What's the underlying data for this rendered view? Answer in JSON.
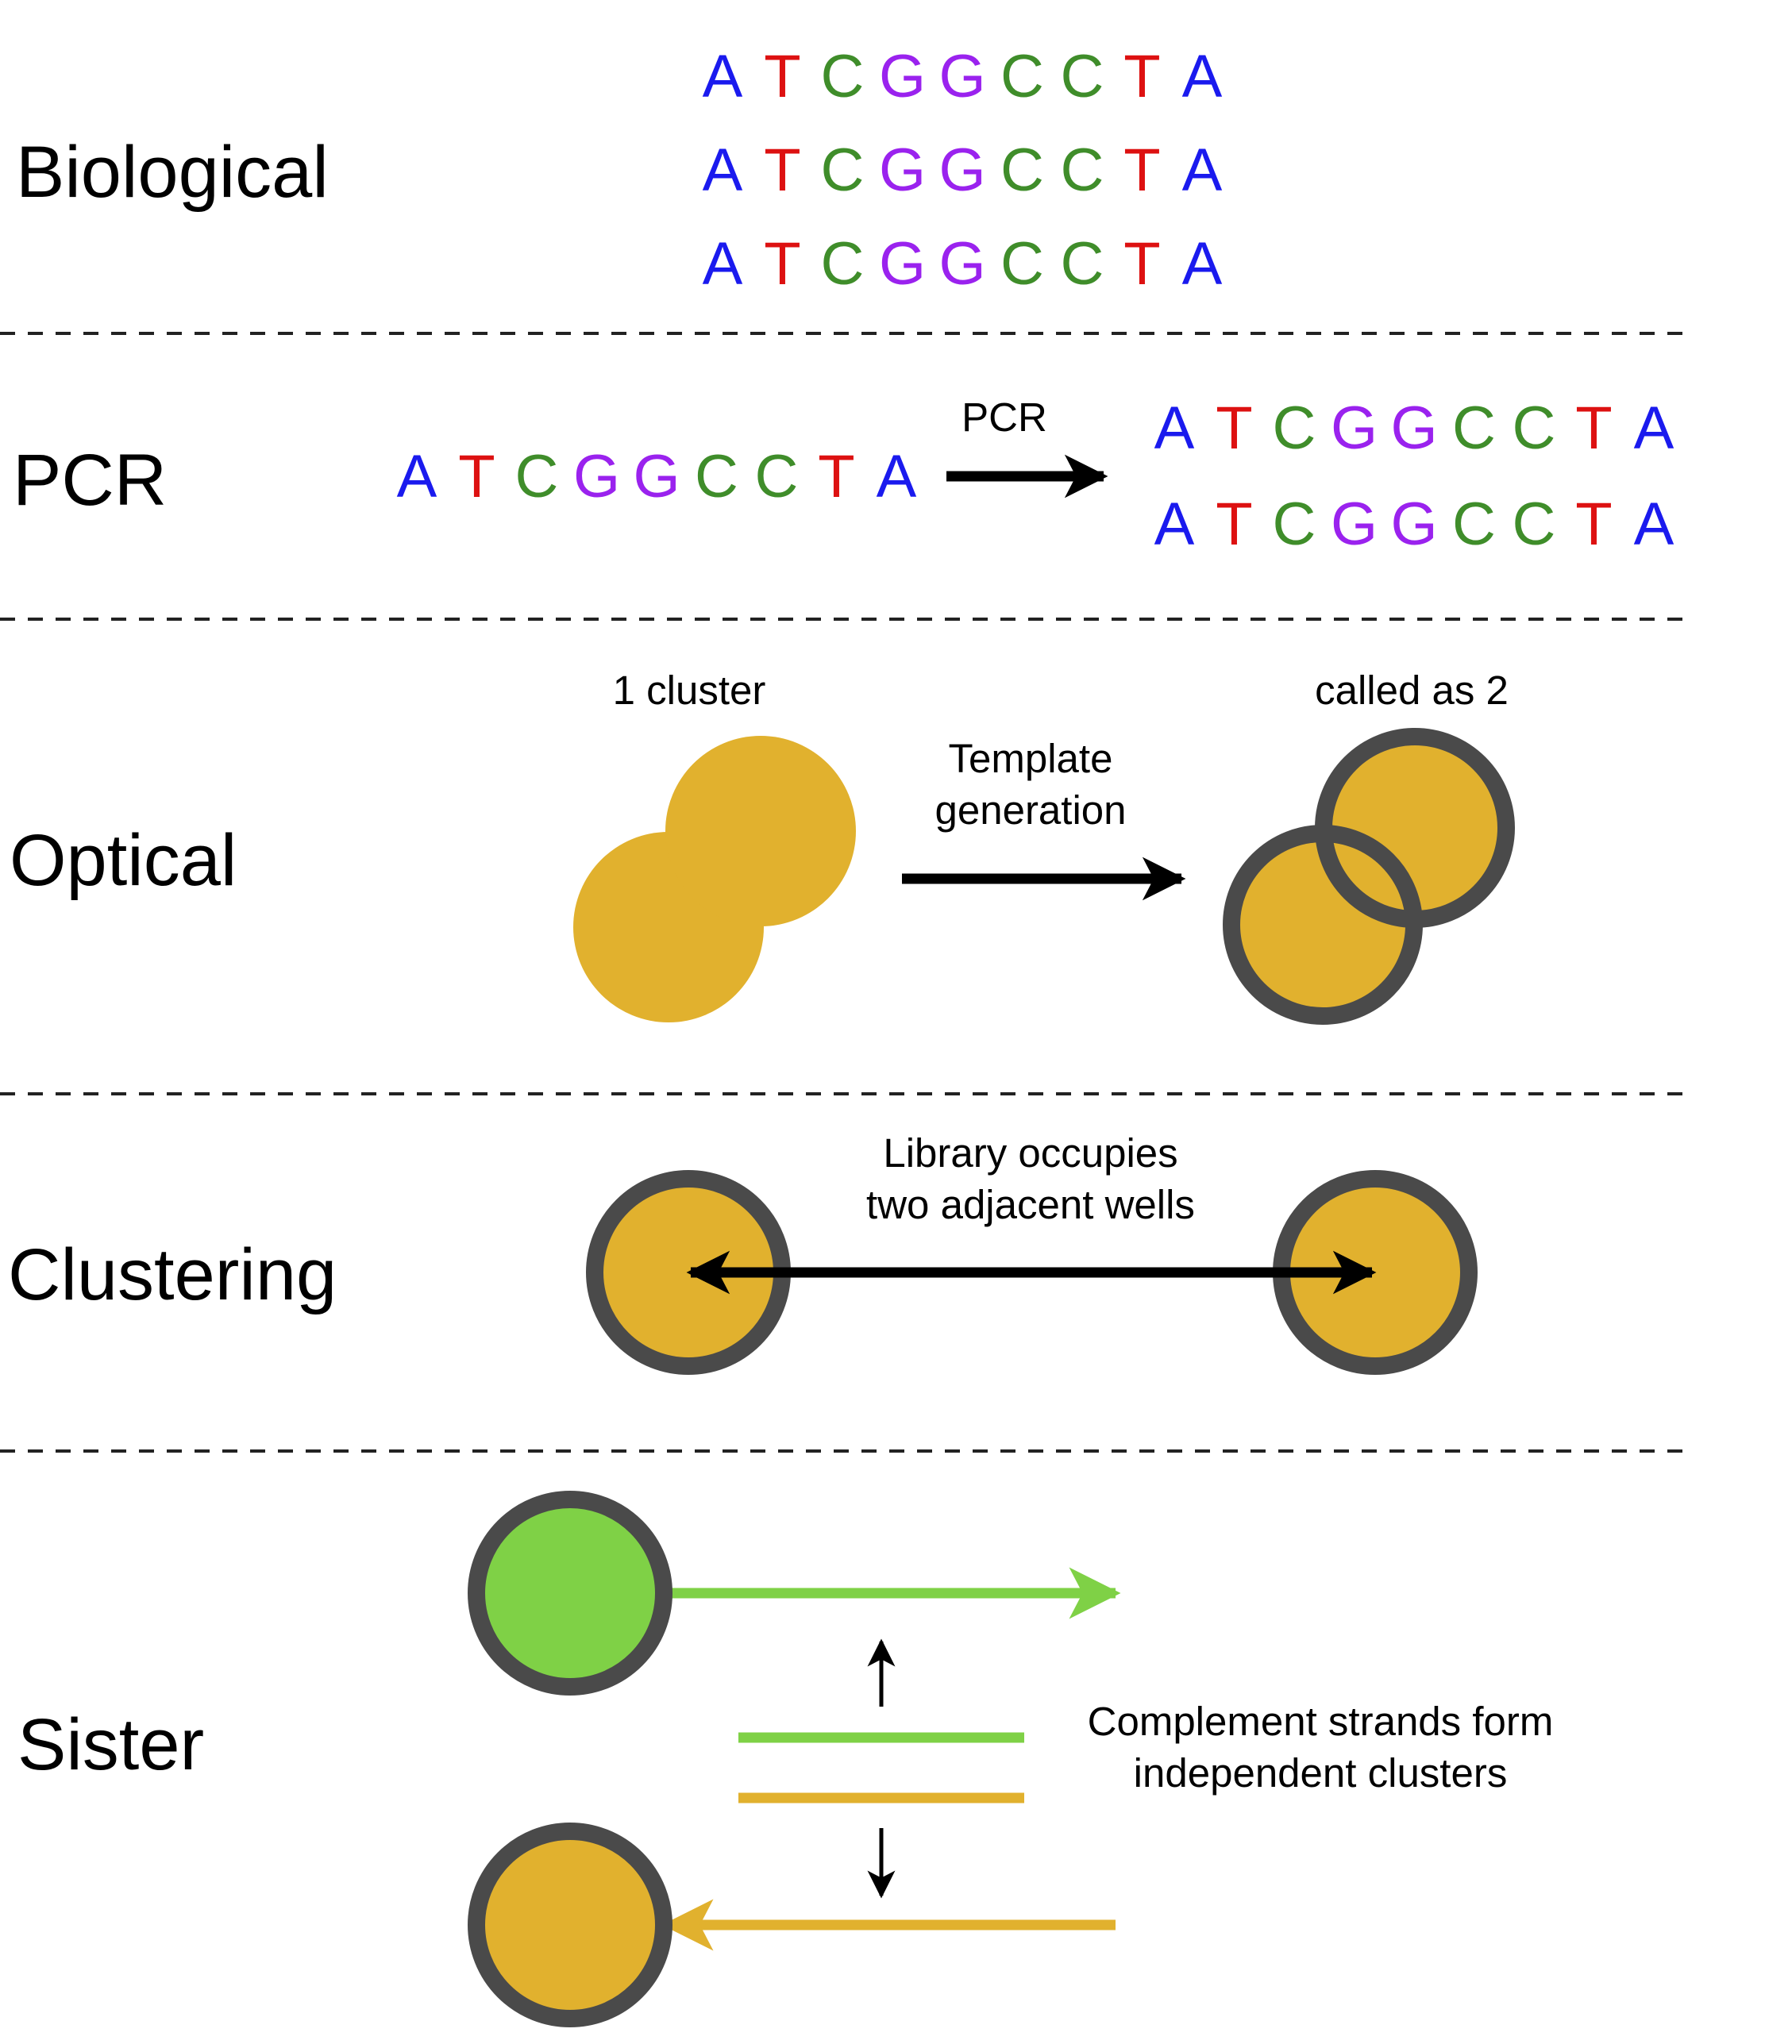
{
  "colors": {
    "A": "#1a1aee",
    "T": "#dd1111",
    "C": "#3f8d2a",
    "G": "#9a22ee",
    "cluster_gold": "#e1b12e",
    "cluster_green": "#7fd146",
    "ring": "#4a4a4a",
    "arrow": "#000000"
  },
  "sequence": "ATCGGCCTA",
  "sections": {
    "biological": {
      "label": "Biological"
    },
    "pcr": {
      "label": "PCR",
      "arrow_label": "PCR"
    },
    "optical": {
      "label": "Optical",
      "left_caption": "1 cluster",
      "right_caption": "called as 2",
      "arrow_label_line1": "Template",
      "arrow_label_line2": "generation"
    },
    "clustering": {
      "label": "Clustering",
      "caption_line1": "Library occupies",
      "caption_line2": "two adjacent wells"
    },
    "sister": {
      "label": "Sister",
      "caption_line1": "Complement strands form",
      "caption_line2": "independent clusters"
    }
  }
}
